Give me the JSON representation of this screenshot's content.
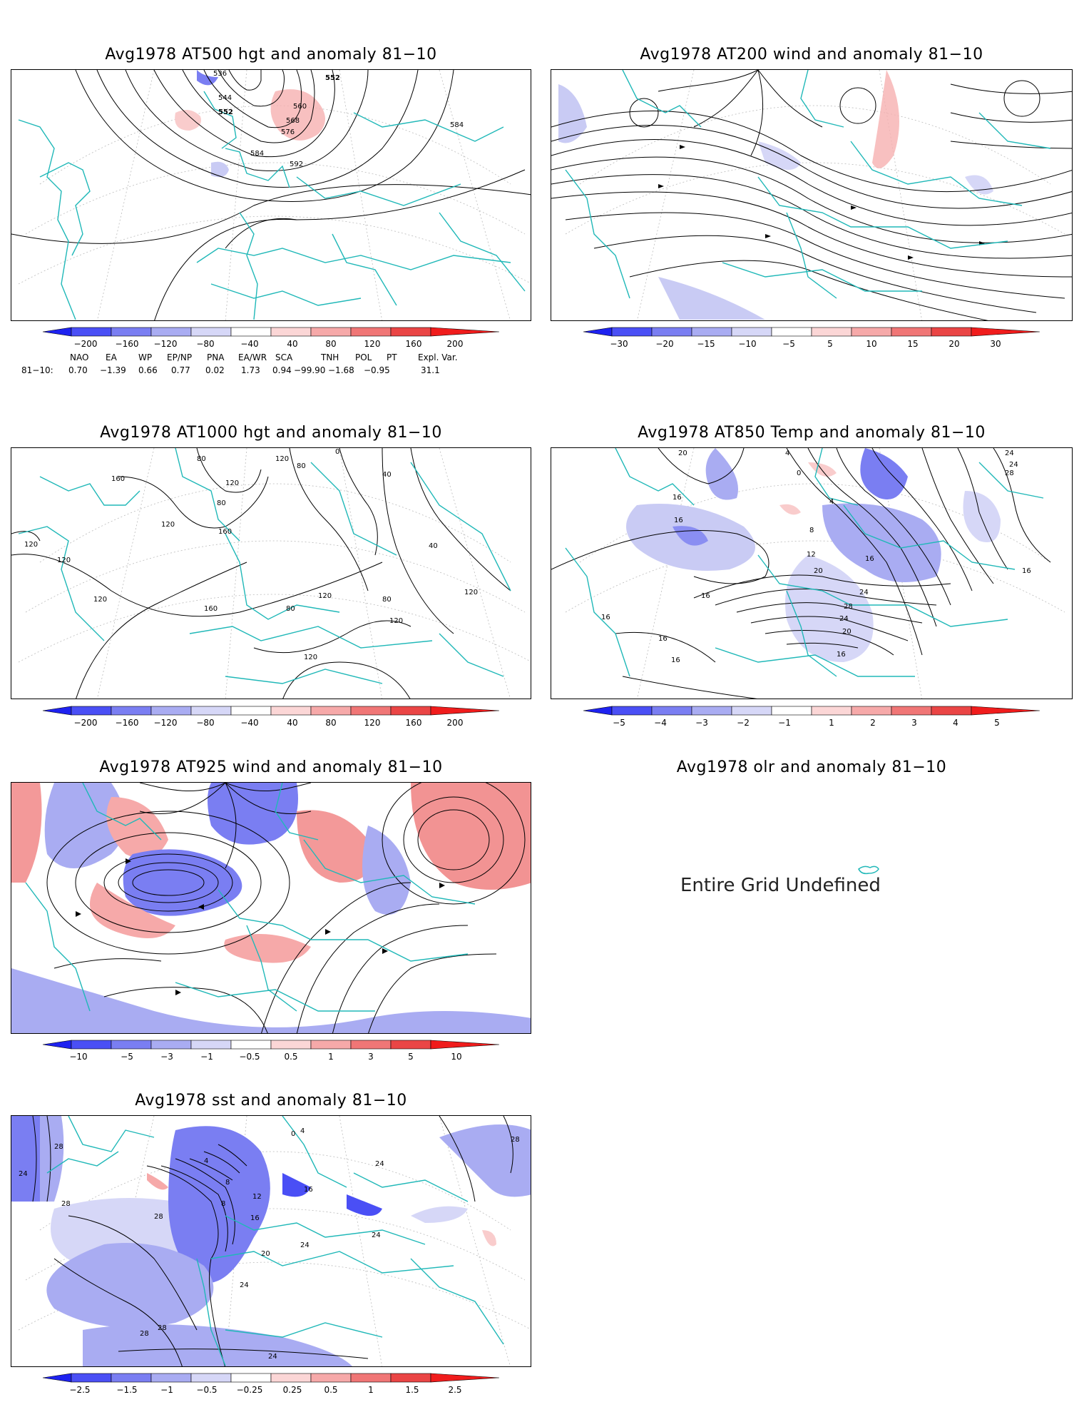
{
  "panels": {
    "hgt500": {
      "title": "Avg1978 AT500 hgt and anomaly 81−10",
      "contour_labels": [
        "536",
        "544",
        "552",
        "552",
        "560",
        "568",
        "576",
        "584",
        "592",
        "584"
      ]
    },
    "wind200": {
      "title": "Avg1978 AT200 wind and anomaly 81−10"
    },
    "hgt1000": {
      "title": "Avg1978 AT1000 hgt and anomaly 81−10",
      "contour_labels": [
        "160",
        "120",
        "160",
        "80",
        "120",
        "120",
        "120",
        "80",
        "120",
        "0",
        "80",
        "40",
        "120",
        "120",
        "120",
        "160",
        "80",
        "80",
        "120",
        "120",
        "40"
      ]
    },
    "temp850": {
      "title": "Avg1978 AT850 Temp and anomaly 81−10",
      "contour_labels": [
        "20",
        "4",
        "24",
        "24",
        "28",
        "16",
        "0",
        "4",
        "8",
        "12",
        "16",
        "20",
        "24",
        "16",
        "16",
        "16",
        "28",
        "24",
        "20",
        "16",
        "16",
        "16",
        "16"
      ]
    },
    "wind925": {
      "title": "Avg1978 AT925 wind and anomaly 81−10"
    },
    "olr": {
      "title": "Avg1978 olr and anomaly 81−10",
      "message": "Entire Grid Undefined"
    },
    "sst": {
      "title": "Avg1978 sst and anomaly 81−10",
      "contour_labels": [
        "28",
        "24",
        "28",
        "28",
        "4",
        "8",
        "12",
        "16",
        "20",
        "24",
        "28",
        "24",
        "24",
        "24",
        "28",
        "28",
        "8",
        "0",
        "4",
        "16",
        "24"
      ]
    }
  },
  "colorbars": {
    "hgt": [
      "−200",
      "−160",
      "−120",
      "−80",
      "−40",
      "40",
      "80",
      "120",
      "160",
      "200"
    ],
    "wind200": [
      "−30",
      "−20",
      "−15",
      "−10",
      "−5",
      "5",
      "10",
      "15",
      "20",
      "30"
    ],
    "temp850": [
      "−5",
      "−4",
      "−3",
      "−2",
      "−1",
      "1",
      "2",
      "3",
      "4",
      "5"
    ],
    "wind925": [
      "−10",
      "−5",
      "−3",
      "−1",
      "−0.5",
      "0.5",
      "1",
      "3",
      "5",
      "10"
    ],
    "sst": [
      "−2.5",
      "−1.5",
      "−1",
      "−0.5",
      "−0.25",
      "0.25",
      "0.5",
      "1",
      "1.5",
      "2.5"
    ],
    "colors": [
      "#1e22f0",
      "#4a4ff5",
      "#7a7ef2",
      "#a9acf2",
      "#d6d7f7",
      "#ffffff",
      "#fbd6d6",
      "#f6a9a9",
      "#f07676",
      "#ea4545",
      "#f01c1c"
    ]
  },
  "indices": {
    "header": [
      "NAO",
      "EA",
      "WP",
      "EP/NP",
      "PNA",
      "EA/WR",
      "SCA",
      "TNH",
      "POL",
      "PT",
      "Expl. Var."
    ],
    "row_label": "81−10:",
    "values": [
      "0.70",
      "−1.39",
      "0.66",
      "0.77",
      "0.02",
      "1.73",
      "0.94",
      "−99.90",
      "−1.68",
      "−0.95",
      "31.1"
    ]
  }
}
